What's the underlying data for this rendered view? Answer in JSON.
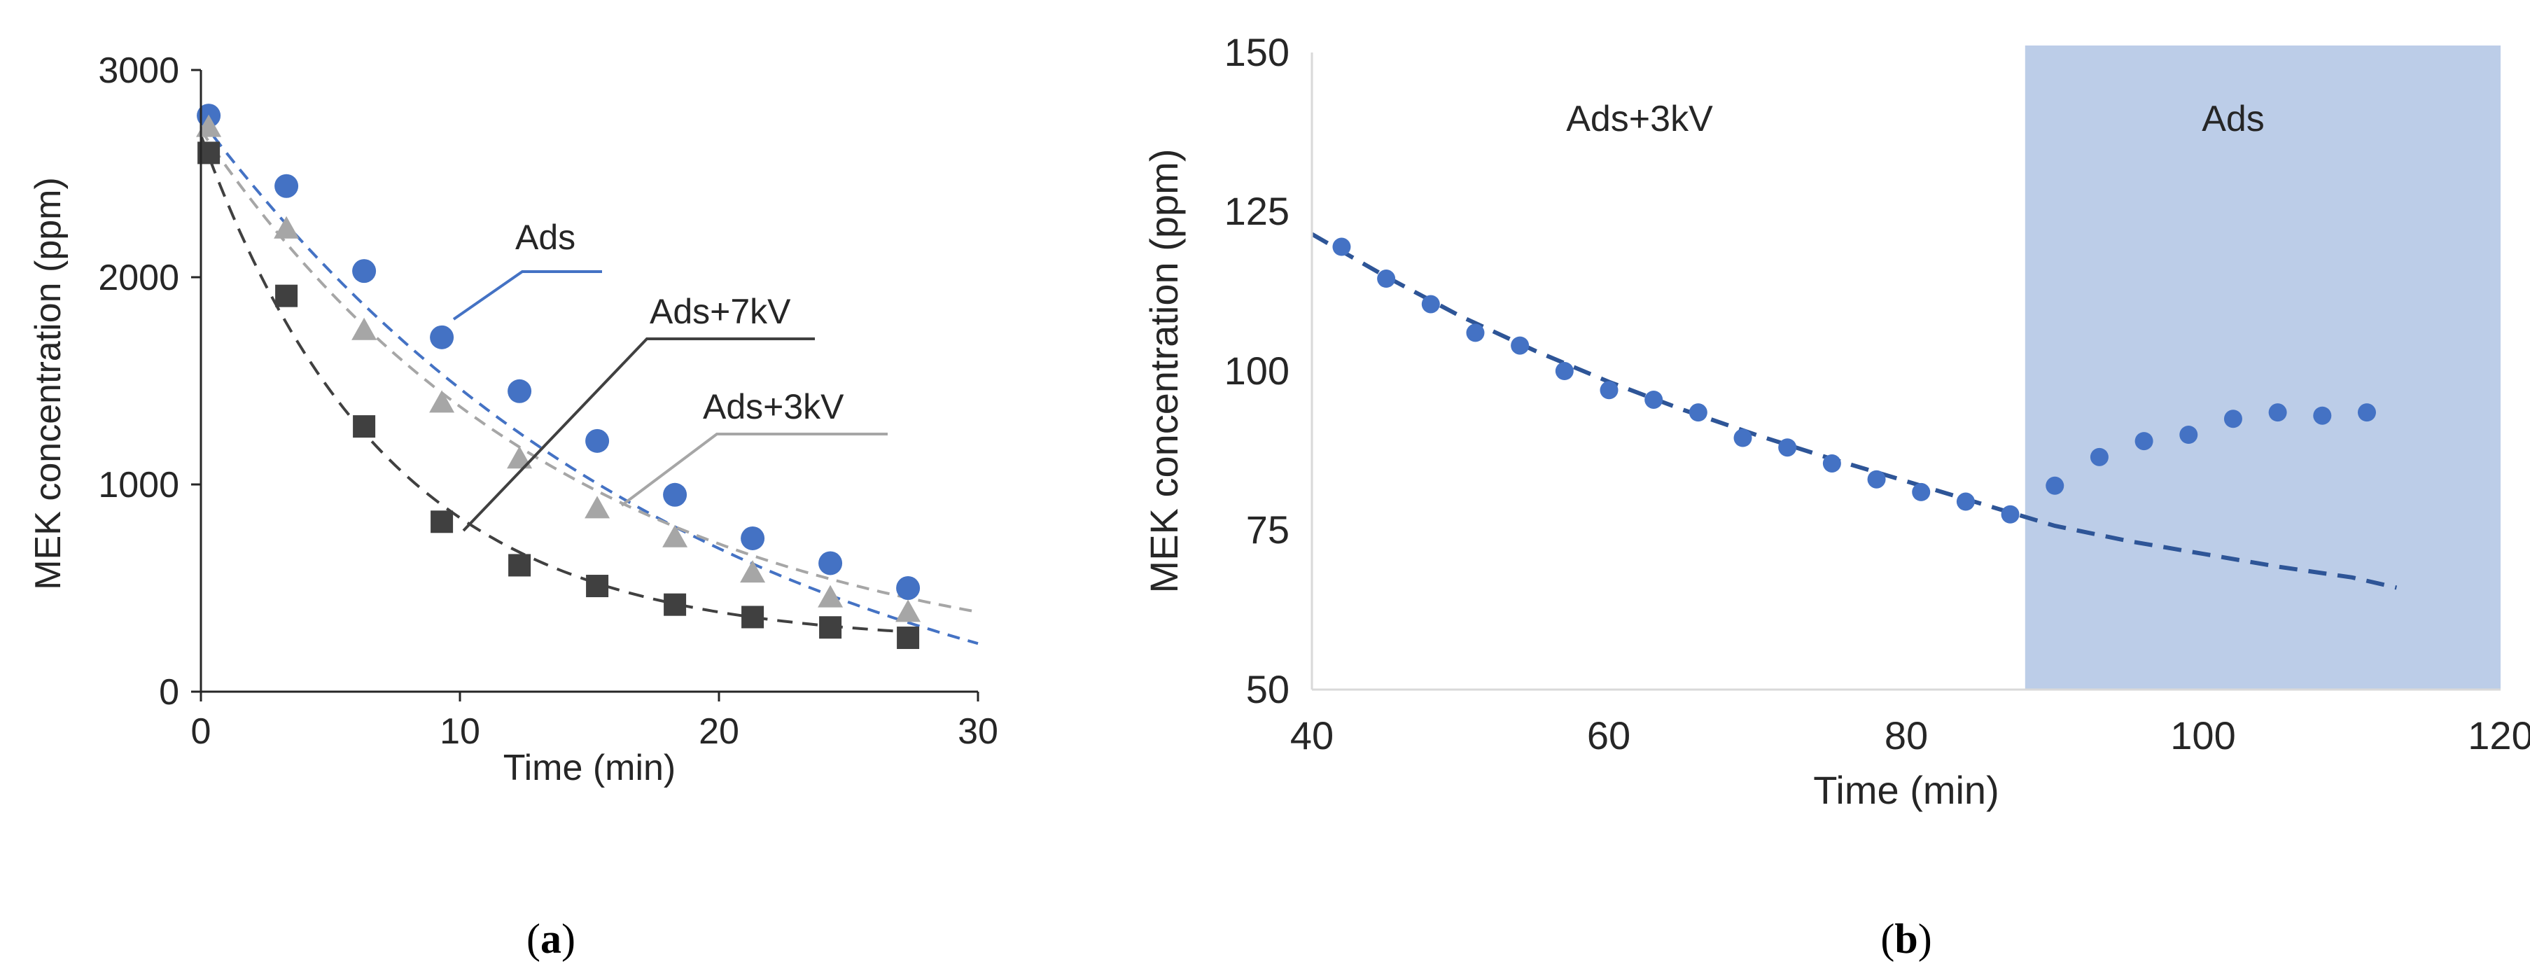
{
  "chart_data": [
    {
      "id": "a",
      "type": "scatter",
      "caption_letter": "a",
      "xlabel": "Time (min)",
      "ylabel": "MEK concentration (ppm)",
      "xlim": [
        0,
        30
      ],
      "ylim": [
        0,
        3000
      ],
      "xticks": [
        "0",
        "10",
        "20",
        "30"
      ],
      "yticks": [
        "0",
        "1000",
        "2000",
        "3000"
      ],
      "grid": false,
      "series": [
        {
          "name": "Ads",
          "color": "#4472c4",
          "marker": "circle",
          "fit_line": "dashed",
          "x": [
            0.3,
            3.3,
            6.3,
            9.3,
            12.3,
            15.3,
            18.3,
            21.3,
            24.3,
            27.3
          ],
          "y": [
            2780,
            2440,
            2030,
            1710,
            1450,
            1210,
            950,
            740,
            620,
            500
          ]
        },
        {
          "name": "Ads+3kV",
          "color": "#a6a6a6",
          "marker": "triangle",
          "fit_line": "dashed",
          "x": [
            0.3,
            3.3,
            6.3,
            9.3,
            12.3,
            15.3,
            18.3,
            21.3,
            24.3,
            27.3
          ],
          "y": [
            2720,
            2230,
            1740,
            1390,
            1120,
            880,
            740,
            570,
            450,
            380
          ]
        },
        {
          "name": "Ads+7kV",
          "color": "#404040",
          "marker": "square",
          "fit_line": "dashed",
          "x": [
            0.3,
            3.3,
            6.3,
            9.3,
            12.3,
            15.3,
            18.3,
            21.3,
            24.3,
            27.3
          ],
          "y": [
            2600,
            1910,
            1280,
            820,
            610,
            510,
            420,
            360,
            310,
            260
          ]
        }
      ],
      "annotations": [
        {
          "text": "Ads",
          "series": "Ads"
        },
        {
          "text": "Ads+7kV",
          "series": "Ads+7kV"
        },
        {
          "text": "Ads+3kV",
          "series": "Ads+3kV"
        }
      ]
    },
    {
      "id": "b",
      "type": "scatter",
      "caption_letter": "b",
      "xlabel": "Time (min)",
      "ylabel": "MEK concentration (ppm)",
      "xlim": [
        40,
        120
      ],
      "ylim": [
        50,
        150
      ],
      "xticks": [
        "40",
        "60",
        "80",
        "100",
        "120"
      ],
      "yticks": [
        "50",
        "75",
        "100",
        "125",
        "150"
      ],
      "grid": false,
      "shaded_region": {
        "x_from": 88,
        "x_to": 120,
        "label": "Ads",
        "color": "#bccde8"
      },
      "region_labels": [
        {
          "text": "Ads+3kV"
        }
      ],
      "series": [
        {
          "name": "MEK",
          "color": "#4472c4",
          "marker": "circle",
          "x": [
            42,
            45,
            48,
            51,
            54,
            57,
            60,
            63,
            66,
            69,
            72,
            75,
            78,
            81,
            84,
            87,
            90,
            93,
            96,
            99,
            102,
            105,
            108,
            111
          ],
          "y": [
            119.5,
            114.5,
            110.5,
            106,
            104,
            100,
            97,
            95.5,
            93.5,
            89.5,
            88,
            85.5,
            83,
            81,
            79.5,
            77.5,
            82,
            86.5,
            89,
            90,
            92.5,
            93.5,
            93,
            93.5
          ]
        }
      ],
      "fit": {
        "style": "dashed",
        "color": "#2e5597",
        "x": [
          40,
          45,
          50,
          55,
          60,
          65,
          70,
          75,
          80,
          85,
          90,
          95,
          100,
          105,
          110,
          113
        ],
        "y": [
          121.5,
          114.8,
          108.6,
          103.2,
          98.3,
          93.9,
          89.9,
          86.2,
          82.7,
          79.2,
          75.7,
          73.3,
          71.3,
          69.3,
          67.6,
          66
        ]
      }
    }
  ]
}
